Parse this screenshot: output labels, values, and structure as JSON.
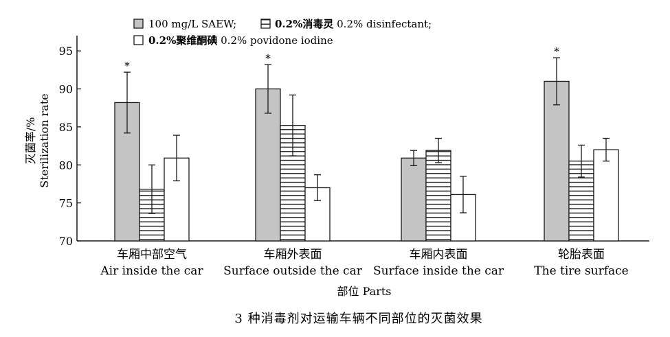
{
  "chart_data": {
    "type": "bar",
    "categories": [
      {
        "zh": "车厢中部空气",
        "en": "Air inside the car"
      },
      {
        "zh": "车厢外表面",
        "en": "Surface outside the car"
      },
      {
        "zh": "车厢内表面",
        "en": "Surface inside the car"
      },
      {
        "zh": "轮胎表面",
        "en": "The tire surface"
      }
    ],
    "series": [
      {
        "name": "100 mg/L SAEW;",
        "fill": "#c4c4c4",
        "pattern": "solid",
        "values": [
          88.2,
          90.0,
          80.9,
          91.0
        ],
        "errors": [
          4.0,
          3.2,
          1.0,
          3.1
        ],
        "significance": [
          "*",
          "*",
          "",
          "*"
        ]
      },
      {
        "name_bold": "0.2%消毒灵",
        "name_rest": " 0.2% disinfectant;",
        "fill": "#ffffff",
        "pattern": "horizontal-lines",
        "values": [
          76.8,
          85.2,
          81.9,
          80.5
        ],
        "errors": [
          3.2,
          4.0,
          1.6,
          2.1
        ],
        "significance": [
          "",
          "",
          "",
          ""
        ]
      },
      {
        "name_bold": "0.2%聚维酮碘",
        "name_rest": " 0.2% povidone iodine",
        "fill": "#ffffff",
        "pattern": "open",
        "values": [
          80.9,
          77.0,
          76.1,
          82.0
        ],
        "errors": [
          3.0,
          1.7,
          2.4,
          1.5
        ],
        "significance": [
          "",
          "",
          "",
          ""
        ]
      }
    ],
    "ylabel_zh": "灭菌率/%",
    "ylabel_en": "Sterilization rate",
    "xlabel": "部位 Parts",
    "ylim": [
      70,
      97
    ],
    "yticks": [
      70,
      75,
      80,
      85,
      90,
      95
    ],
    "grid": false,
    "legend_position": "top-left"
  },
  "caption": "3 种消毒剂对运输车辆不同部位的灭菌效果"
}
